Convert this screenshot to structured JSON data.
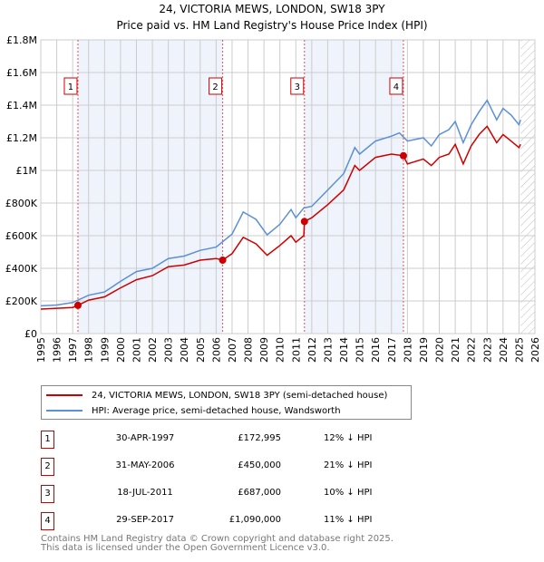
{
  "chart_data": {
    "type": "line",
    "title": "24, VICTORIA MEWS, LONDON, SW18 3PY",
    "subtitle": "Price paid vs. HM Land Registry's House Price Index (HPI)",
    "xlim": [
      1995,
      2026
    ],
    "ylim": [
      0,
      1800000
    ],
    "y_ticks": [
      {
        "v": 0,
        "label": "£0"
      },
      {
        "v": 200000,
        "label": "£200K"
      },
      {
        "v": 400000,
        "label": "£400K"
      },
      {
        "v": 600000,
        "label": "£600K"
      },
      {
        "v": 800000,
        "label": "£800K"
      },
      {
        "v": 1000000,
        "label": "£1M"
      },
      {
        "v": 1200000,
        "label": "£1.2M"
      },
      {
        "v": 1400000,
        "label": "£1.4M"
      },
      {
        "v": 1600000,
        "label": "£1.6M"
      },
      {
        "v": 1800000,
        "label": "£1.8M"
      }
    ],
    "x_ticks": [
      "1995",
      "1996",
      "1997",
      "1998",
      "1999",
      "2000",
      "2001",
      "2002",
      "2003",
      "2004",
      "2005",
      "2006",
      "2007",
      "2008",
      "2009",
      "2010",
      "2011",
      "2012",
      "2013",
      "2014",
      "2015",
      "2016",
      "2017",
      "2018",
      "2019",
      "2020",
      "2021",
      "2022",
      "2023",
      "2024",
      "2025",
      "2026"
    ],
    "grid": true,
    "shaded_ranges": [
      [
        1997.33,
        2006.41
      ],
      [
        2011.54,
        2017.75
      ]
    ],
    "forecast_hatch_from": 2025.1,
    "series": [
      {
        "name": "24, VICTORIA MEWS, LONDON, SW18 3PY (semi-detached house)",
        "color": "#cc0000",
        "x": [
          1995,
          1996,
          1997,
          1997.33,
          1998,
          1999,
          2000,
          2001,
          2002,
          2003,
          2004,
          2005,
          2006,
          2006.41,
          2007,
          2007.7,
          2008.5,
          2009.2,
          2010,
          2010.7,
          2011,
          2011.5,
          2011.54,
          2012,
          2013,
          2014,
          2014.7,
          2015,
          2016,
          2017,
          2017.75,
          2018,
          2019,
          2019.5,
          2020,
          2020.6,
          2021,
          2021.5,
          2022,
          2022.5,
          2023,
          2023.6,
          2024,
          2024.5,
          2025,
          2025.1
        ],
        "y": [
          150000,
          155000,
          160000,
          172995,
          205000,
          225000,
          280000,
          330000,
          355000,
          410000,
          420000,
          450000,
          460000,
          450000,
          490000,
          590000,
          550000,
          480000,
          540000,
          600000,
          560000,
          600000,
          687000,
          710000,
          790000,
          880000,
          1030000,
          1000000,
          1080000,
          1100000,
          1090000,
          1040000,
          1070000,
          1030000,
          1080000,
          1100000,
          1160000,
          1040000,
          1150000,
          1220000,
          1270000,
          1170000,
          1220000,
          1180000,
          1140000,
          1160000
        ]
      },
      {
        "name": "HPI: Average price, semi-detached house, Wandsworth",
        "color": "#5b8fd6",
        "x": [
          1995,
          1996,
          1997,
          1998,
          1999,
          2000,
          2001,
          2002,
          2003,
          2004,
          2005,
          2006,
          2007,
          2007.7,
          2008.5,
          2009.2,
          2010,
          2010.7,
          2011,
          2011.5,
          2012,
          2013,
          2014,
          2014.7,
          2015,
          2016,
          2017,
          2017.5,
          2018,
          2019,
          2019.5,
          2020,
          2020.6,
          2021,
          2021.5,
          2022,
          2022.5,
          2023,
          2023.6,
          2024,
          2024.5,
          2025,
          2025.1
        ],
        "y": [
          170000,
          175000,
          190000,
          235000,
          255000,
          320000,
          380000,
          400000,
          460000,
          475000,
          510000,
          530000,
          610000,
          745000,
          700000,
          605000,
          670000,
          760000,
          710000,
          770000,
          780000,
          880000,
          980000,
          1140000,
          1100000,
          1180000,
          1210000,
          1230000,
          1180000,
          1200000,
          1150000,
          1220000,
          1250000,
          1300000,
          1170000,
          1280000,
          1360000,
          1430000,
          1310000,
          1380000,
          1340000,
          1280000,
          1310000
        ]
      }
    ],
    "sales": [
      {
        "n": "1",
        "x": 1997.33,
        "price": 172995,
        "date": "30-APR-1997",
        "price_label": "£172,995",
        "hpi": "12% ↓ HPI"
      },
      {
        "n": "2",
        "x": 2006.41,
        "price": 450000,
        "date": "31-MAY-2006",
        "price_label": "£450,000",
        "hpi": "21% ↓ HPI"
      },
      {
        "n": "3",
        "x": 2011.54,
        "price": 687000,
        "date": "18-JUL-2011",
        "price_label": "£687,000",
        "hpi": "10% ↓ HPI"
      },
      {
        "n": "4",
        "x": 2017.75,
        "price": 1090000,
        "date": "29-SEP-2017",
        "price_label": "£1,090,000",
        "hpi": "11% ↓ HPI"
      }
    ]
  },
  "footer": {
    "line1": "Contains HM Land Registry data © Crown copyright and database right 2025.",
    "line2": "This data is licensed under the Open Government Licence v3.0."
  }
}
